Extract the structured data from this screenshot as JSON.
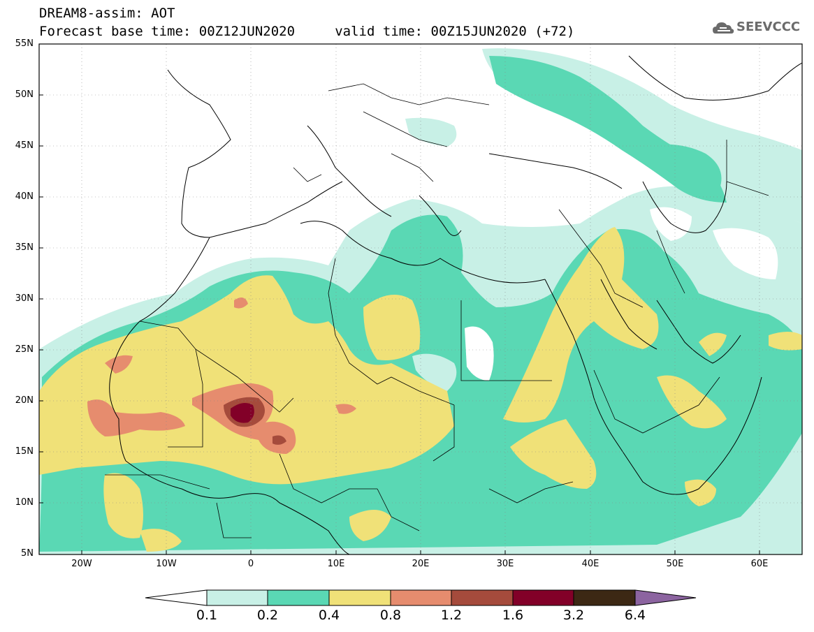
{
  "header": {
    "line1": "DREAM8-assim: AOT",
    "line2": "Forecast base time: 00Z12JUN2020     valid time: 00Z15JUN2020 (+72)"
  },
  "logo": {
    "text": "SEEVCCC",
    "icon": "cloud-icon"
  },
  "map": {
    "lat_labels": [
      "55N",
      "50N",
      "45N",
      "40N",
      "35N",
      "30N",
      "25N",
      "20N",
      "15N",
      "10N",
      "5N"
    ],
    "lon_labels": [
      "20W",
      "10W",
      "0",
      "10E",
      "20E",
      "30E",
      "40E",
      "50E",
      "60E"
    ],
    "lat_range": [
      5,
      55
    ],
    "lon_range": [
      -25,
      65
    ],
    "grid": "dotted"
  },
  "colorbar": {
    "labels": [
      "0.1",
      "0.2",
      "0.4",
      "0.8",
      "1.2",
      "1.6",
      "3.2",
      "6.4"
    ],
    "colors": [
      "#ffffff",
      "#c8f0e6",
      "#5ad8b4",
      "#f0e178",
      "#e68c6e",
      "#a54b3c",
      "#820028",
      "#3c2814",
      "#8c64a0"
    ]
  },
  "palette": {
    "level1": "#c8f0e6",
    "level2": "#5ad8b4",
    "level3": "#f0e178",
    "level4": "#e68c6e",
    "level5": "#a54b3c",
    "level6": "#820028"
  }
}
